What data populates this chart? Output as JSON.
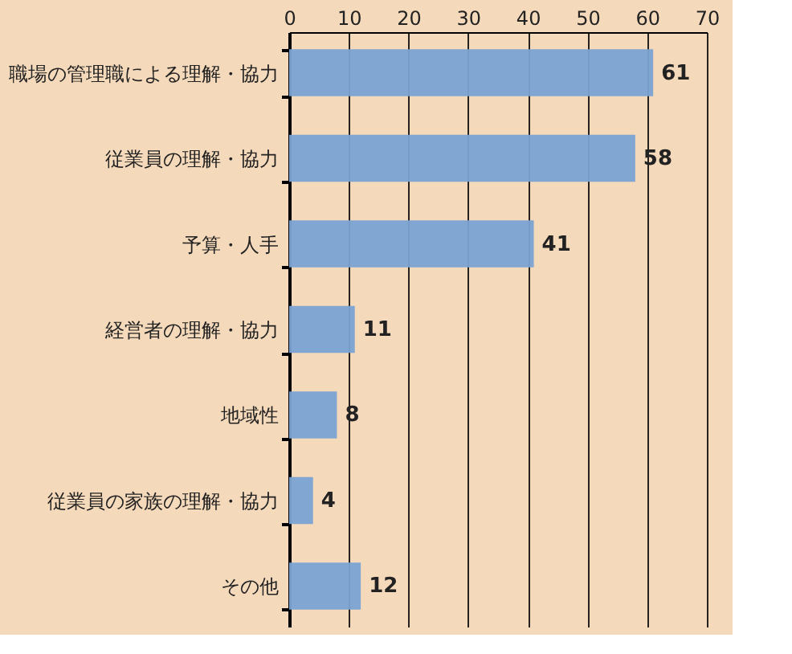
{
  "chart_data": {
    "type": "bar",
    "orientation": "horizontal",
    "categories": [
      "職場の管理職による理解・協力",
      "従業員の理解・協力",
      "予算・人手",
      "経営者の理解・協力",
      "地域性",
      "従業員の家族の理解・協力",
      "その他"
    ],
    "values": [
      61,
      58,
      41,
      11,
      8,
      4,
      12
    ],
    "color": "#7ba3d3",
    "xlim": [
      0,
      70
    ],
    "xticks": [
      0,
      10,
      20,
      30,
      40,
      50,
      60,
      70
    ],
    "grid": "x",
    "data_labels": true
  }
}
